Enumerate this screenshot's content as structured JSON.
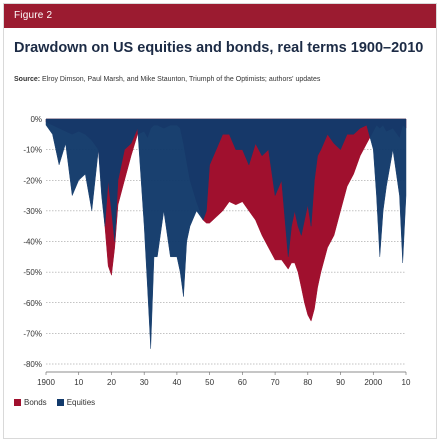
{
  "figure_label": "Figure 2",
  "title": "Drawdown on US equities and bonds, real terms 1900–2010",
  "source_bold": "Source:",
  "source_text": " Elroy Dimson, Paul Marsh, and Mike Staunton, Triumph of the Optimists; authors' updates",
  "colors": {
    "header_band": "#9b1b30",
    "bonds": "#a0102e",
    "equities": "#123a6b",
    "title": "#1c2b45"
  },
  "chart_data": {
    "type": "area",
    "title": "Drawdown on US equities and bonds, real terms 1900–2010",
    "xlabel": "",
    "ylabel": "",
    "xlim": [
      1900,
      2010
    ],
    "ylim": [
      -80,
      0
    ],
    "y_ticks": [
      "0%",
      "-10%",
      "-20%",
      "-30%",
      "-40%",
      "-50%",
      "-60%",
      "-70%",
      "-80%"
    ],
    "x_ticks": [
      "1900",
      "10",
      "20",
      "30",
      "40",
      "50",
      "60",
      "70",
      "80",
      "90",
      "2000",
      "10"
    ],
    "grid": true,
    "legend_position": "bottom-left",
    "x": [
      1900,
      1902,
      1904,
      1906,
      1908,
      1910,
      1912,
      1914,
      1916,
      1917,
      1918,
      1919,
      1920,
      1921,
      1922,
      1924,
      1926,
      1928,
      1930,
      1931,
      1932,
      1933,
      1934,
      1936,
      1938,
      1940,
      1941,
      1942,
      1943,
      1944,
      1946,
      1948,
      1949,
      1950,
      1952,
      1954,
      1956,
      1958,
      1960,
      1962,
      1964,
      1966,
      1968,
      1970,
      1972,
      1974,
      1975,
      1976,
      1977,
      1978,
      1979,
      1980,
      1981,
      1982,
      1983,
      1984,
      1986,
      1988,
      1990,
      1992,
      1994,
      1996,
      1998,
      2000,
      2001,
      2002,
      2003,
      2004,
      2006,
      2008,
      2009,
      2010
    ],
    "series": [
      {
        "name": "Bonds",
        "values": [
          -1,
          -2,
          -3,
          -4,
          -5,
          -4,
          -5,
          -7,
          -10,
          -22,
          -35,
          -48,
          -51,
          -42,
          -28,
          -20,
          -12,
          -5,
          -4,
          -6,
          -3,
          -2,
          -2,
          -3,
          -2,
          -2,
          -3,
          -8,
          -14,
          -20,
          -27,
          -33,
          -34,
          -34,
          -32,
          -30,
          -27,
          -28,
          -27,
          -30,
          -33,
          -38,
          -42,
          -46,
          -46,
          -49,
          -47,
          -47,
          -50,
          -55,
          -60,
          -64,
          -66,
          -62,
          -55,
          -50,
          -42,
          -38,
          -30,
          -22,
          -18,
          -12,
          -8,
          -4,
          -2,
          -3,
          -2,
          -4,
          -3,
          -6,
          -2,
          -3
        ]
      },
      {
        "name": "Equities",
        "values": [
          -2,
          -5,
          -15,
          -8,
          -25,
          -20,
          -18,
          -30,
          -10,
          -25,
          -35,
          -20,
          -30,
          -40,
          -20,
          -10,
          -8,
          -3,
          -35,
          -55,
          -75,
          -45,
          -45,
          -30,
          -45,
          -45,
          -50,
          -58,
          -40,
          -35,
          -30,
          -33,
          -30,
          -15,
          -10,
          -5,
          -5,
          -10,
          -10,
          -15,
          -8,
          -12,
          -10,
          -25,
          -20,
          -45,
          -35,
          -30,
          -35,
          -38,
          -33,
          -28,
          -35,
          -20,
          -12,
          -10,
          -5,
          -8,
          -10,
          -5,
          -5,
          -3,
          -2,
          -10,
          -25,
          -45,
          -30,
          -22,
          -10,
          -25,
          -47,
          -25
        ]
      }
    ],
    "legend": [
      "Bonds",
      "Equities"
    ]
  }
}
